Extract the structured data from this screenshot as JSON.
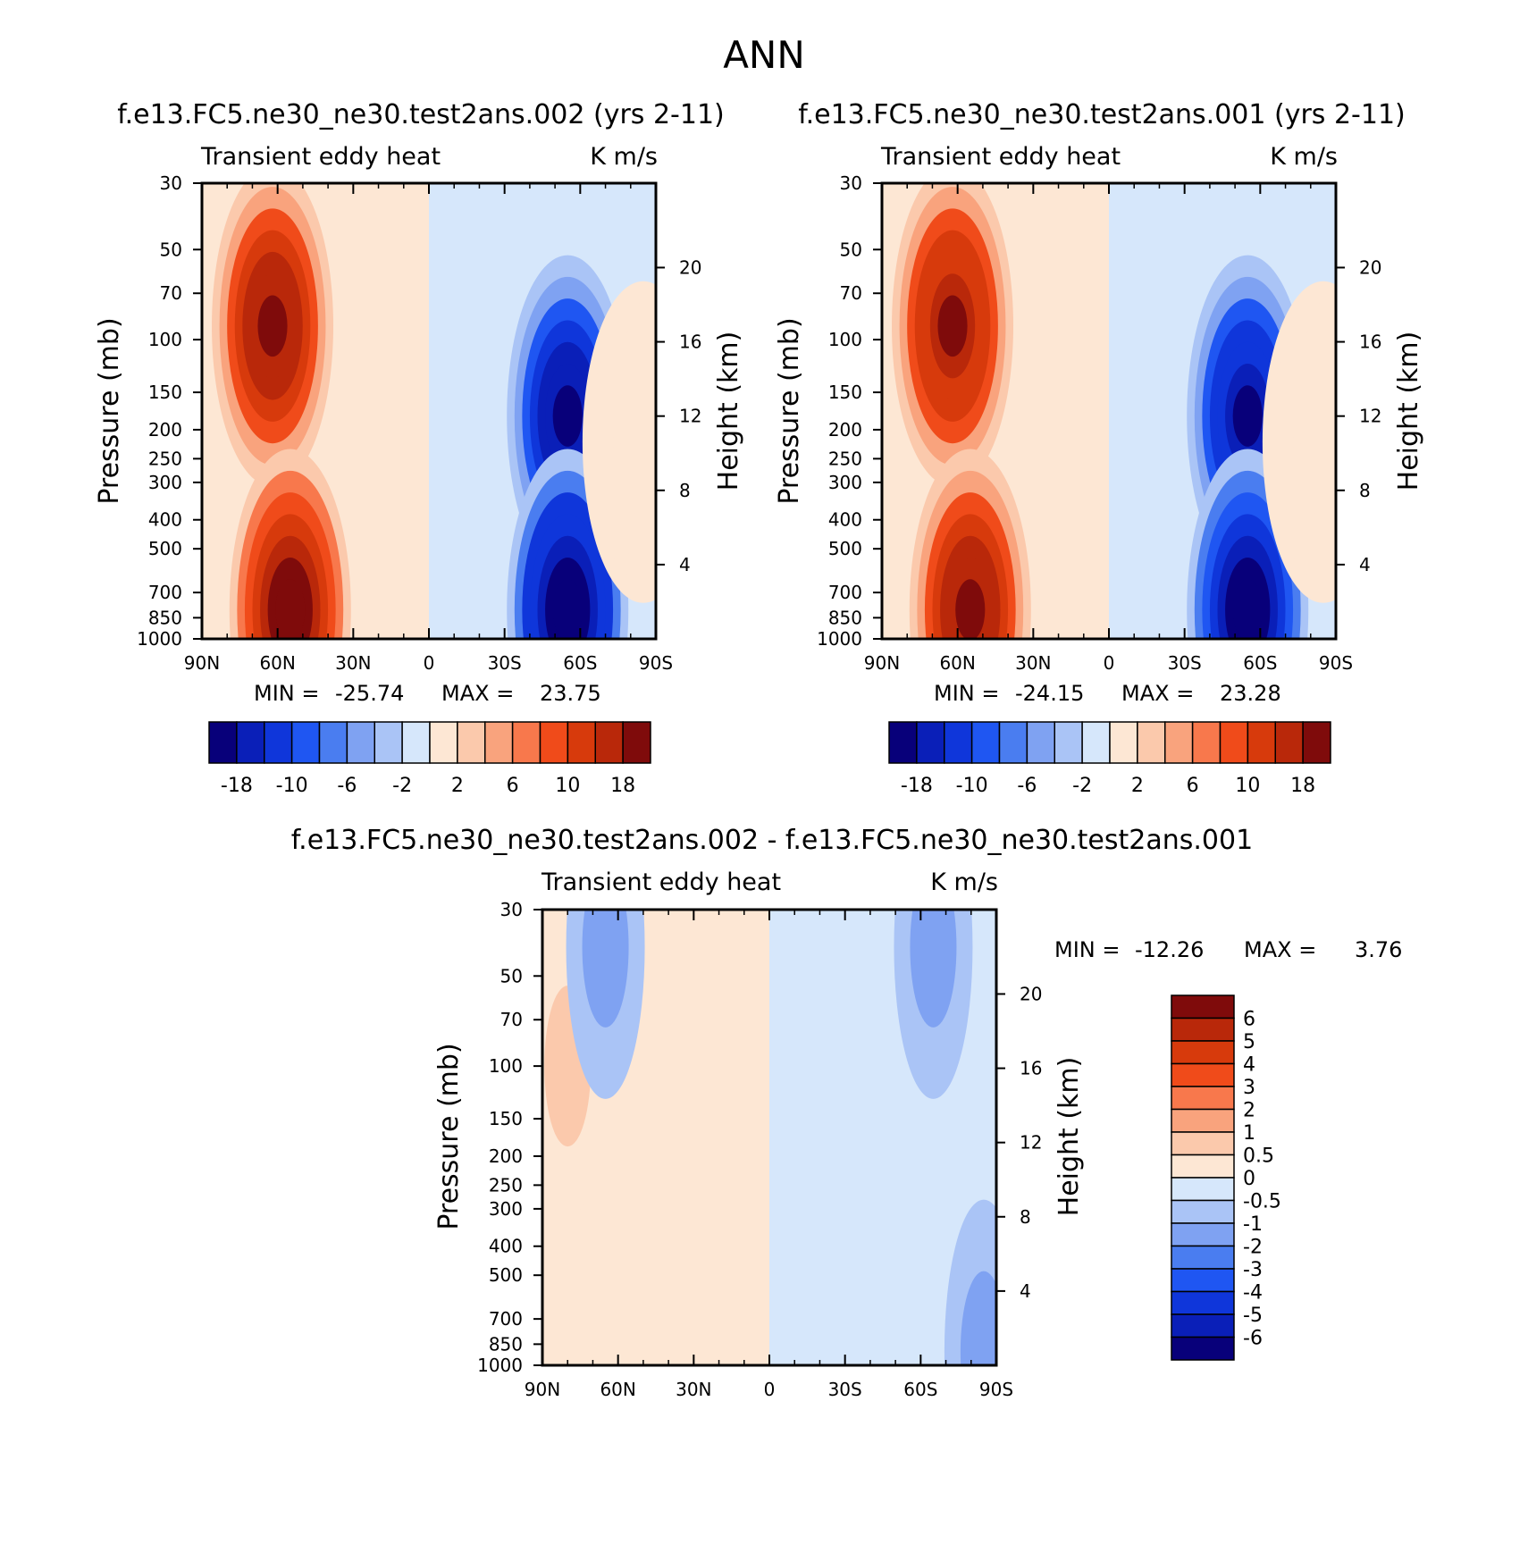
{
  "page_title": "ANN",
  "colors": {
    "field_scale": [
      "#08007a",
      "#0a1fb8",
      "#0f36da",
      "#1f56f2",
      "#4a7df0",
      "#7fa2f2",
      "#aac4f6",
      "#d6e7fb",
      "#fde7d4",
      "#fbc9ac",
      "#f9a37d",
      "#f8784c",
      "#f04b1a",
      "#d73a0c",
      "#b9280a",
      "#7f0b0b"
    ],
    "diff_scale": [
      "#08007a",
      "#0a1fb8",
      "#0f36da",
      "#1f56f2",
      "#4a7df0",
      "#7fa2f2",
      "#aac4f6",
      "#d6e7fb",
      "#fde7d4",
      "#fbc9ac",
      "#f9a37d",
      "#f8784c",
      "#f04b1a",
      "#d73a0c",
      "#b9280a",
      "#7f0b0b"
    ]
  },
  "chart_data": [
    {
      "type": "heatmap",
      "title": "f.e13.FC5.ne30_ne30.test2ans.002 (yrs 2-11)",
      "subtitle_left": "Transient eddy heat",
      "subtitle_right": "K m/s",
      "ylabel": "Pressure (mb)",
      "ylabel_right": "Height (km)",
      "x_ticks": [
        "90N",
        "60N",
        "30N",
        "0",
        "30S",
        "60S",
        "90S"
      ],
      "x_range": [
        90,
        -90
      ],
      "y_ticks": [
        30,
        50,
        70,
        100,
        150,
        200,
        250,
        300,
        400,
        500,
        700,
        850,
        1000
      ],
      "y_range": [
        30,
        1000
      ],
      "y_scale": "log",
      "height_ticks": [
        20,
        16,
        12,
        8,
        4
      ],
      "min_label": "MIN =",
      "min_value": "-25.74",
      "max_label": "MAX =",
      "max_value": "23.75",
      "colorbar_labels": [
        "-18",
        "-10",
        "-6",
        "-2",
        "2",
        "6",
        "10",
        "18"
      ],
      "features": [
        {
          "lat": 62,
          "p": 90,
          "value": 20
        },
        {
          "lat": 55,
          "p": 800,
          "value": 22
        },
        {
          "lat": -55,
          "p": 180,
          "value": -20
        },
        {
          "lat": -55,
          "p": 800,
          "value": -24
        },
        {
          "lat": -85,
          "p": 220,
          "value": 2
        }
      ]
    },
    {
      "type": "heatmap",
      "title": "f.e13.FC5.ne30_ne30.test2ans.001 (yrs 2-11)",
      "subtitle_left": "Transient eddy heat",
      "subtitle_right": "K m/s",
      "ylabel": "Pressure (mb)",
      "ylabel_right": "Height (km)",
      "x_ticks": [
        "90N",
        "60N",
        "30N",
        "0",
        "30S",
        "60S",
        "90S"
      ],
      "x_range": [
        90,
        -90
      ],
      "y_ticks": [
        30,
        50,
        70,
        100,
        150,
        200,
        250,
        300,
        400,
        500,
        700,
        850,
        1000
      ],
      "y_range": [
        30,
        1000
      ],
      "y_scale": "log",
      "height_ticks": [
        20,
        16,
        12,
        8,
        4
      ],
      "min_label": "MIN =",
      "min_value": "-24.15",
      "max_label": "MAX =",
      "max_value": "23.28",
      "colorbar_labels": [
        "-18",
        "-10",
        "-6",
        "-2",
        "2",
        "6",
        "10",
        "18"
      ],
      "features": [
        {
          "lat": 62,
          "p": 90,
          "value": 19
        },
        {
          "lat": 55,
          "p": 800,
          "value": 21
        },
        {
          "lat": -55,
          "p": 180,
          "value": -19
        },
        {
          "lat": -55,
          "p": 800,
          "value": -23
        },
        {
          "lat": -85,
          "p": 220,
          "value": 2
        }
      ]
    },
    {
      "type": "heatmap",
      "title": "f.e13.FC5.ne30_ne30.test2ans.002 - f.e13.FC5.ne30_ne30.test2ans.001",
      "subtitle_left": "Transient eddy heat",
      "subtitle_right": "K m/s",
      "ylabel": "Pressure (mb)",
      "ylabel_right": "Height (km)",
      "x_ticks": [
        "90N",
        "60N",
        "30N",
        "0",
        "30S",
        "60S",
        "90S"
      ],
      "x_range": [
        90,
        -90
      ],
      "y_ticks": [
        30,
        50,
        70,
        100,
        150,
        200,
        250,
        300,
        400,
        500,
        700,
        850,
        1000
      ],
      "y_range": [
        30,
        1000
      ],
      "y_scale": "log",
      "height_ticks": [
        20,
        16,
        12,
        8,
        4
      ],
      "min_label": "MIN =",
      "min_value": "-12.26",
      "max_label": "MAX =",
      "max_value": "3.76",
      "colorbar_labels": [
        "6",
        "5",
        "4",
        "3",
        "2",
        "1",
        "0.5",
        "0",
        "-0.5",
        "-1",
        "-2",
        "-3",
        "-4",
        "-5",
        "-6"
      ],
      "features": [
        {
          "lat": 80,
          "p": 100,
          "value": 1
        },
        {
          "lat": 65,
          "p": 40,
          "value": -1
        },
        {
          "lat": -65,
          "p": 40,
          "value": -1
        },
        {
          "lat": -85,
          "p": 900,
          "value": -1
        }
      ]
    }
  ]
}
